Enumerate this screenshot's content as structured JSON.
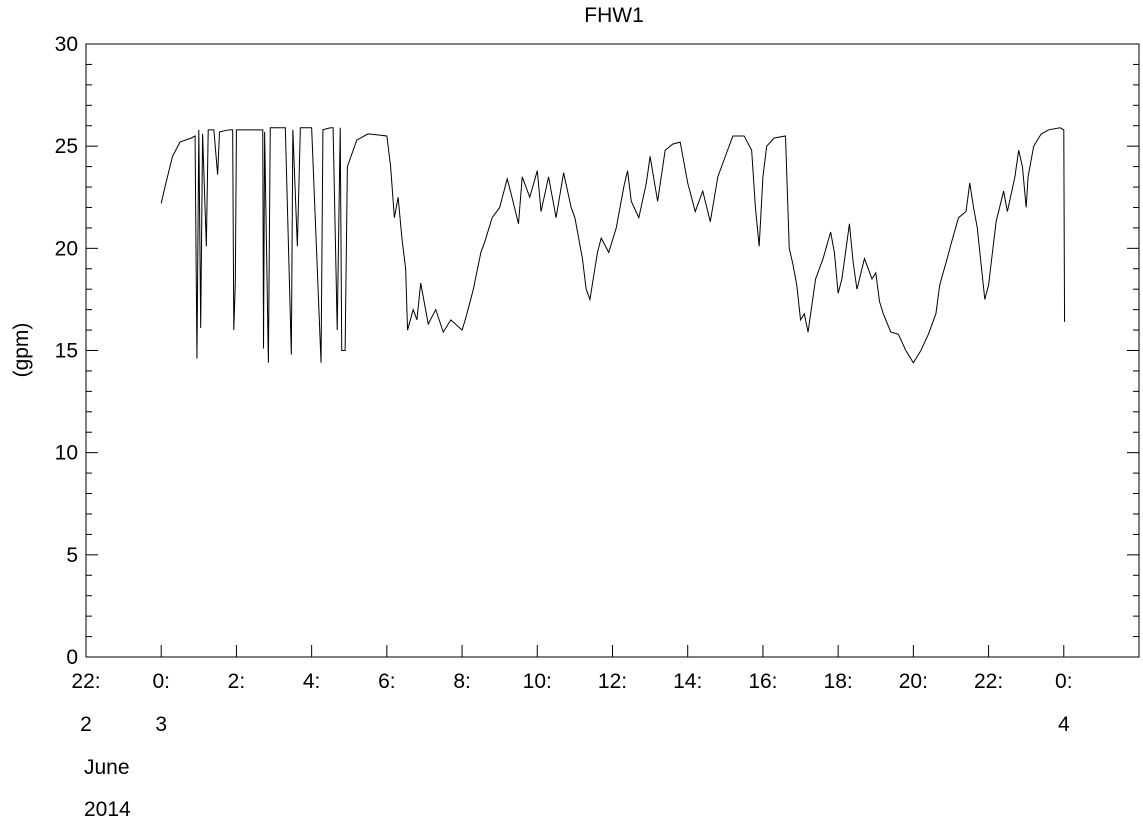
{
  "chart_data": {
    "type": "line",
    "title": "FHW1",
    "y_label": "(gpm)",
    "color": "#000000",
    "x": [
      0.0,
      0.1,
      0.3,
      0.5,
      0.8,
      0.9,
      0.95,
      1.0,
      1.05,
      1.1,
      1.2,
      1.25,
      1.4,
      1.5,
      1.55,
      1.8,
      1.9,
      1.93,
      1.97,
      2.0,
      2.7,
      2.72,
      2.75,
      2.85,
      2.9,
      3.3,
      3.46,
      3.5,
      3.62,
      3.7,
      4.0,
      4.25,
      4.3,
      4.5,
      4.57,
      4.68,
      4.76,
      4.8,
      4.89,
      4.95,
      5.2,
      5.5,
      6.0,
      6.1,
      6.2,
      6.3,
      6.4,
      6.5,
      6.55,
      6.7,
      6.8,
      6.9,
      7.0,
      7.1,
      7.3,
      7.5,
      7.7,
      8.0,
      8.1,
      8.3,
      8.5,
      8.6,
      8.8,
      9.0,
      9.2,
      9.3,
      9.5,
      9.6,
      9.8,
      10.0,
      10.1,
      10.3,
      10.5,
      10.7,
      10.9,
      11.0,
      11.2,
      11.3,
      11.4,
      11.6,
      11.7,
      11.9,
      12.1,
      12.3,
      12.4,
      12.5,
      12.7,
      12.9,
      13.0,
      13.2,
      13.4,
      13.6,
      13.8,
      14.0,
      14.2,
      14.4,
      14.6,
      14.8,
      15.0,
      15.2,
      15.5,
      15.7,
      15.8,
      15.9,
      16.0,
      16.1,
      16.3,
      16.6,
      16.7,
      16.8,
      16.9,
      17.0,
      17.1,
      17.2,
      17.4,
      17.6,
      17.8,
      17.9,
      18.0,
      18.1,
      18.3,
      18.4,
      18.5,
      18.7,
      18.9,
      19.0,
      19.1,
      19.2,
      19.4,
      19.6,
      19.8,
      20.0,
      20.2,
      20.4,
      20.6,
      20.7,
      20.9,
      21.0,
      21.2,
      21.4,
      21.5,
      21.6,
      21.7,
      21.9,
      22.0,
      22.2,
      22.4,
      22.5,
      22.7,
      22.8,
      22.9,
      23.0,
      23.05,
      23.2,
      23.4,
      23.6,
      23.9,
      24.0,
      24.02
    ],
    "values": [
      22.2,
      23,
      24.5,
      25.2,
      25.4,
      25.5,
      14.6,
      25.8,
      16.1,
      25.6,
      20.1,
      25.8,
      25.8,
      23.6,
      25.7,
      25.8,
      25.8,
      16.0,
      18.3,
      25.8,
      25.8,
      15.1,
      25.7,
      14.4,
      25.9,
      25.9,
      14.8,
      25.8,
      20.1,
      25.9,
      25.9,
      14.4,
      25.8,
      25.9,
      25.9,
      16,
      25.9,
      15.0,
      15.0,
      24,
      25.3,
      25.6,
      25.5,
      24,
      21.5,
      22.5,
      20.5,
      19,
      16,
      17,
      16.5,
      18.3,
      17.3,
      16.3,
      17,
      15.9,
      16.5,
      16.0,
      16.6,
      18.0,
      19.8,
      20.3,
      21.5,
      22.0,
      23.4,
      22.7,
      21.2,
      23.5,
      22.5,
      23.8,
      21.8,
      23.5,
      21.5,
      23.7,
      22.0,
      21.5,
      19.5,
      18.0,
      17.5,
      19.8,
      20.5,
      19.8,
      21.0,
      23.0,
      23.8,
      22.3,
      21.5,
      23.2,
      24.5,
      22.3,
      24.8,
      25.1,
      25.2,
      23.2,
      21.8,
      22.8,
      21.3,
      23.5,
      24.5,
      25.5,
      25.5,
      24.8,
      22,
      20.1,
      23.5,
      25.0,
      25.4,
      25.5,
      20,
      19.2,
      18.2,
      16.5,
      16.8,
      15.9,
      18.5,
      19.5,
      20.8,
      19.8,
      17.8,
      18.5,
      21.2,
      19.3,
      18.0,
      19.5,
      18.5,
      18.8,
      17.4,
      16.8,
      15.9,
      15.8,
      15.0,
      14.4,
      15.0,
      15.8,
      16.8,
      18.2,
      19.5,
      20.2,
      21.5,
      21.8,
      23.2,
      22.0,
      21.0,
      17.5,
      18.2,
      21.3,
      22.8,
      21.8,
      23.5,
      24.8,
      24.0,
      22.0,
      23.5,
      25.0,
      25.6,
      25.8,
      25.9,
      25.8,
      16.4
    ],
    "xlim": [
      -2,
      26
    ],
    "xticks": [
      {
        "value": -2,
        "label": "22:"
      },
      {
        "value": 0,
        "label": "0:"
      },
      {
        "value": 2,
        "label": "2:"
      },
      {
        "value": 4,
        "label": "4:"
      },
      {
        "value": 6,
        "label": "6:"
      },
      {
        "value": 8,
        "label": "8:"
      },
      {
        "value": 10,
        "label": "10:"
      },
      {
        "value": 12,
        "label": "12:"
      },
      {
        "value": 14,
        "label": "14:"
      },
      {
        "value": 16,
        "label": "16:"
      },
      {
        "value": 18,
        "label": "18:"
      },
      {
        "value": 20,
        "label": "20:"
      },
      {
        "value": 22,
        "label": "22:"
      },
      {
        "value": 24,
        "label": "0:"
      }
    ],
    "xtick_days": [
      {
        "value": -2,
        "label": "2"
      },
      {
        "value": 0,
        "label": "3"
      },
      {
        "value": 24,
        "label": "4"
      }
    ],
    "month": "June",
    "year": "2014",
    "ylim": [
      0,
      30
    ],
    "yticks": [
      0,
      5,
      10,
      15,
      20,
      25,
      30
    ],
    "yminorticks": [
      1,
      2,
      3,
      4,
      6,
      7,
      8,
      9,
      11,
      12,
      13,
      14,
      16,
      17,
      18,
      19,
      21,
      22,
      23,
      24,
      26,
      27,
      28,
      29
    ]
  }
}
